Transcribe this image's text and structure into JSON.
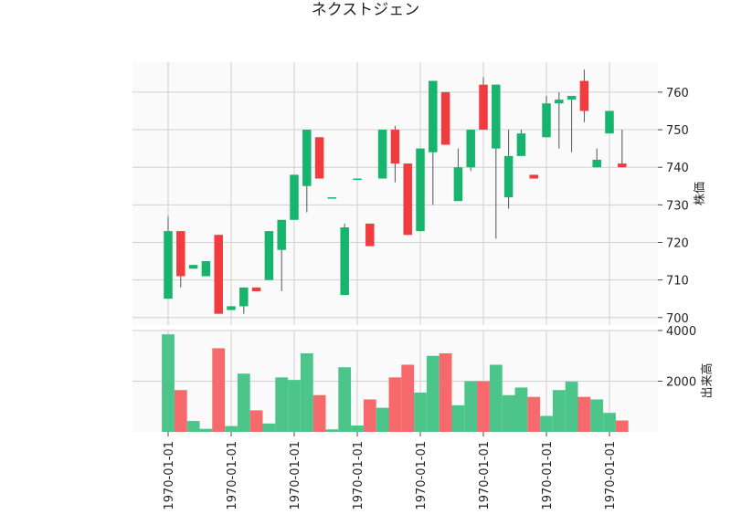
{
  "chart_data": {
    "type": "candlestick",
    "title": "ネクストジェン",
    "price_ylabel": "株価",
    "volume_ylabel": "出来高",
    "price_yticks": [
      700,
      710,
      720,
      730,
      740,
      750,
      760
    ],
    "volume_yticks": [
      2000,
      4000
    ],
    "volume_ytick_labels": [
      "2000",
      "4000"
    ],
    "price_ylim": [
      698,
      768
    ],
    "volume_ylim": [
      0,
      4000
    ],
    "xtick_labels": [
      "1970-01-01",
      "1970-01-01",
      "1970-01-01",
      "1970-01-01",
      "1970-01-01",
      "1970-01-01",
      "1970-01-01",
      "1970-01-01"
    ],
    "xtick_indices": [
      0,
      5,
      10,
      15,
      20,
      25,
      30,
      35
    ],
    "up_color": "#16b46c",
    "down_color": "#f23b3f",
    "volume_up_color": "#4cc58b",
    "volume_down_color": "#f66a6d",
    "candles": [
      {
        "o": 705,
        "h": 727,
        "l": 705,
        "c": 723,
        "v": 3850
      },
      {
        "o": 723,
        "h": 723,
        "l": 708,
        "c": 711,
        "v": 1650
      },
      {
        "o": 713,
        "h": 714,
        "l": 713,
        "c": 714,
        "v": 430
      },
      {
        "o": 711,
        "h": 715,
        "l": 711,
        "c": 715,
        "v": 120
      },
      {
        "o": 722,
        "h": 722,
        "l": 701,
        "c": 701,
        "v": 3300
      },
      {
        "o": 702,
        "h": 703,
        "l": 702,
        "c": 703,
        "v": 230
      },
      {
        "o": 703,
        "h": 708,
        "l": 701,
        "c": 708,
        "v": 2300
      },
      {
        "o": 708,
        "h": 708,
        "l": 707,
        "c": 707,
        "v": 850
      },
      {
        "o": 710,
        "h": 723,
        "l": 710,
        "c": 723,
        "v": 330
      },
      {
        "o": 718,
        "h": 726,
        "l": 707,
        "c": 726,
        "v": 2150
      },
      {
        "o": 726,
        "h": 738,
        "l": 726,
        "c": 738,
        "v": 2050
      },
      {
        "o": 735,
        "h": 750,
        "l": 728,
        "c": 750,
        "v": 3100
      },
      {
        "o": 748,
        "h": 748,
        "l": 737,
        "c": 737,
        "v": 1450
      },
      {
        "o": 732,
        "h": 732,
        "l": 732,
        "c": 732,
        "v": 100
      },
      {
        "o": 706,
        "h": 725,
        "l": 706,
        "c": 724,
        "v": 2550
      },
      {
        "o": 737,
        "h": 737,
        "l": 737,
        "c": 737,
        "v": 250
      },
      {
        "o": 725,
        "h": 725,
        "l": 719,
        "c": 719,
        "v": 1280
      },
      {
        "o": 737,
        "h": 750,
        "l": 737,
        "c": 750,
        "v": 950
      },
      {
        "o": 750,
        "h": 751,
        "l": 736,
        "c": 741,
        "v": 2150
      },
      {
        "o": 741,
        "h": 741,
        "l": 722,
        "c": 722,
        "v": 2650
      },
      {
        "o": 723,
        "h": 745,
        "l": 723,
        "c": 745,
        "v": 1550
      },
      {
        "o": 744,
        "h": 763,
        "l": 730,
        "c": 763,
        "v": 3000
      },
      {
        "o": 760,
        "h": 760,
        "l": 746,
        "c": 746,
        "v": 3100
      },
      {
        "o": 731,
        "h": 745,
        "l": 731,
        "c": 740,
        "v": 1050
      },
      {
        "o": 740,
        "h": 750,
        "l": 739,
        "c": 750,
        "v": 2000
      },
      {
        "o": 762,
        "h": 764,
        "l": 750,
        "c": 750,
        "v": 2000
      },
      {
        "o": 745,
        "h": 762,
        "l": 721,
        "c": 762,
        "v": 2650
      },
      {
        "o": 732,
        "h": 750,
        "l": 729,
        "c": 743,
        "v": 1450
      },
      {
        "o": 743,
        "h": 750,
        "l": 743,
        "c": 749,
        "v": 1750
      },
      {
        "o": 738,
        "h": 738,
        "l": 737,
        "c": 737,
        "v": 1380
      },
      {
        "o": 748,
        "h": 759,
        "l": 748,
        "c": 757,
        "v": 630
      },
      {
        "o": 757,
        "h": 760,
        "l": 745,
        "c": 758,
        "v": 1650
      },
      {
        "o": 758,
        "h": 759,
        "l": 744,
        "c": 759,
        "v": 1980
      },
      {
        "o": 763,
        "h": 766,
        "l": 752,
        "c": 755,
        "v": 1380
      },
      {
        "o": 740,
        "h": 745,
        "l": 740,
        "c": 742,
        "v": 1280
      },
      {
        "o": 749,
        "h": 755,
        "l": 749,
        "c": 755,
        "v": 750
      },
      {
        "o": 741,
        "h": 750,
        "l": 740,
        "c": 740,
        "v": 450
      }
    ]
  }
}
